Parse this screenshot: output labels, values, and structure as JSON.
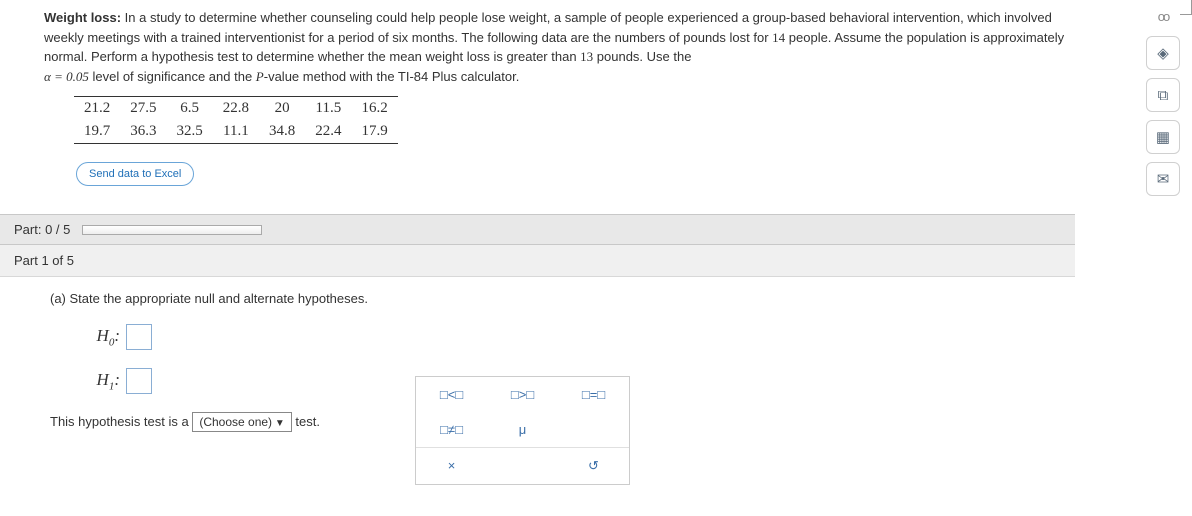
{
  "problem": {
    "title": "Weight loss:",
    "text1": " In a study to determine whether counseling could help people lose weight, a sample of people experienced a group-based behavioral intervention, which involved weekly meetings with a trained interventionist for a period of six months. The following data are the numbers of pounds lost for ",
    "n": "14",
    "text2": " people. Assume the population is approximately normal. Perform a hypothesis test to determine whether the mean weight loss is greater than ",
    "mu0": "13",
    "text3": " pounds. Use the",
    "alpha_label": "α = 0.05",
    "text4": " level of significance and the ",
    "pval": "P",
    "text5": "-value method with the TI-84 Plus calculator."
  },
  "data": {
    "row1": [
      "21.2",
      "27.5",
      "6.5",
      "22.8",
      "20",
      "11.5",
      "16.2"
    ],
    "row2": [
      "19.7",
      "36.3",
      "32.5",
      "11.1",
      "34.8",
      "22.4",
      "17.9"
    ]
  },
  "excel_btn": "Send data to Excel",
  "part_progress": "Part: 0 / 5",
  "subpart": "Part 1 of 5",
  "question_a": "(a) State the appropriate null and alternate hypotheses.",
  "h0": "H",
  "h0_sub": "0",
  "h1": "H",
  "h1_sub": "1",
  "colon": ":",
  "symbols": {
    "lt": "□<□",
    "gt": "□>□",
    "eq": "□=□",
    "ne": "□≠□",
    "mu": "μ",
    "x": "×",
    "reset": "↺"
  },
  "test_line_pre": "This hypothesis test is a ",
  "dd": "(Choose one)",
  "test_line_post": " test.",
  "side": {
    "glasses": "👓",
    "diamond": "◈",
    "list": "⧉",
    "calc": "▦",
    "mail": "✉"
  }
}
